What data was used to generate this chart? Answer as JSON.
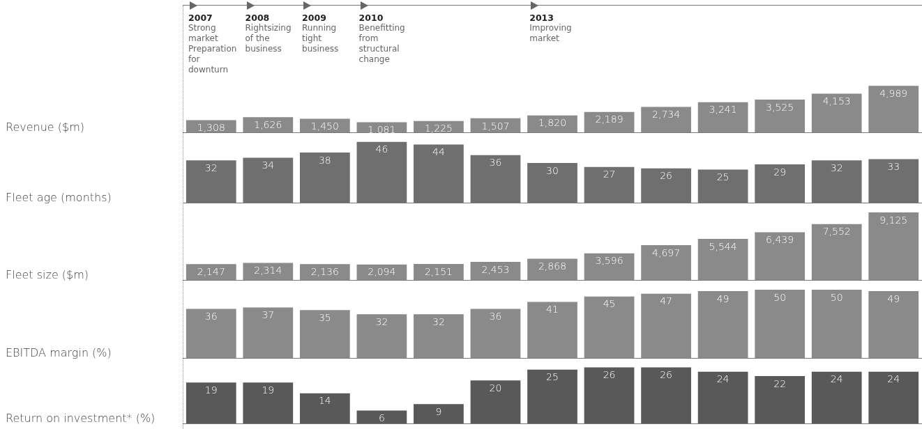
{
  "chart_data": [
    {
      "type": "bar",
      "ylabel": "Revenue ($m)",
      "categories": [
        null,
        null,
        null,
        null,
        null,
        null,
        null,
        null,
        null,
        null,
        null,
        null,
        null
      ],
      "values": [
        1308,
        1626,
        1450,
        1081,
        1225,
        1507,
        1820,
        2189,
        2734,
        3241,
        3525,
        4153,
        4989
      ],
      "data_labels": true,
      "value_labels": [
        "1,308",
        "1,626",
        "1,450",
        "1,081",
        "1,225",
        "1,507",
        "1,820",
        "2,189",
        "2,734",
        "3,241",
        "3,525",
        "4,153",
        "4,989"
      ],
      "color": "#8a8a8a",
      "annotations": [
        "2007\nStrong market Preparation for downturn",
        "2008\nRightsizing of the business",
        "2009\nRunning tight business",
        "2010\nBenefitting from structural change",
        "2013\nImproving market"
      ]
    },
    {
      "type": "bar",
      "ylabel": "Fleet age (months)",
      "categories": [
        null,
        null,
        null,
        null,
        null,
        null,
        null,
        null,
        null,
        null,
        null,
        null,
        null
      ],
      "values": [
        32,
        34,
        38,
        46,
        44,
        36,
        30,
        27,
        26,
        25,
        29,
        32,
        33
      ],
      "color": "#6f6f6f",
      "data_labels": true
    },
    {
      "type": "bar",
      "ylabel": "Fleet size ($m)",
      "categories": [
        null,
        null,
        null,
        null,
        null,
        null,
        null,
        null,
        null,
        null,
        null,
        null,
        null
      ],
      "values": [
        2147,
        2314,
        2136,
        2094,
        2151,
        2453,
        2868,
        3596,
        4697,
        5544,
        6439,
        7552,
        9125
      ],
      "data_labels": true,
      "value_labels": [
        "2,147",
        "2,314",
        "2,136",
        "2,094",
        "2,151",
        "2,453",
        "2,868",
        "3,596",
        "4,697",
        "5,544",
        "6,439",
        "7,552",
        "9,125"
      ],
      "color": "#8a8a8a"
    },
    {
      "type": "bar",
      "ylabel": "EBITDA margin (%)",
      "categories": [
        null,
        null,
        null,
        null,
        null,
        null,
        null,
        null,
        null,
        null,
        null,
        null,
        null
      ],
      "values": [
        36,
        37,
        35,
        32,
        32,
        36,
        41,
        45,
        47,
        49,
        50,
        50,
        49
      ],
      "color": "#8a8a8a",
      "data_labels": true
    },
    {
      "type": "bar",
      "ylabel": "Return on investment* (%)",
      "categories": [
        null,
        null,
        null,
        null,
        null,
        null,
        null,
        null,
        null,
        null,
        null,
        null,
        null
      ],
      "values": [
        19,
        19,
        14,
        6,
        9,
        20,
        25,
        26,
        26,
        24,
        22,
        24,
        24
      ],
      "color": "#595959",
      "data_labels": true
    }
  ]
}
